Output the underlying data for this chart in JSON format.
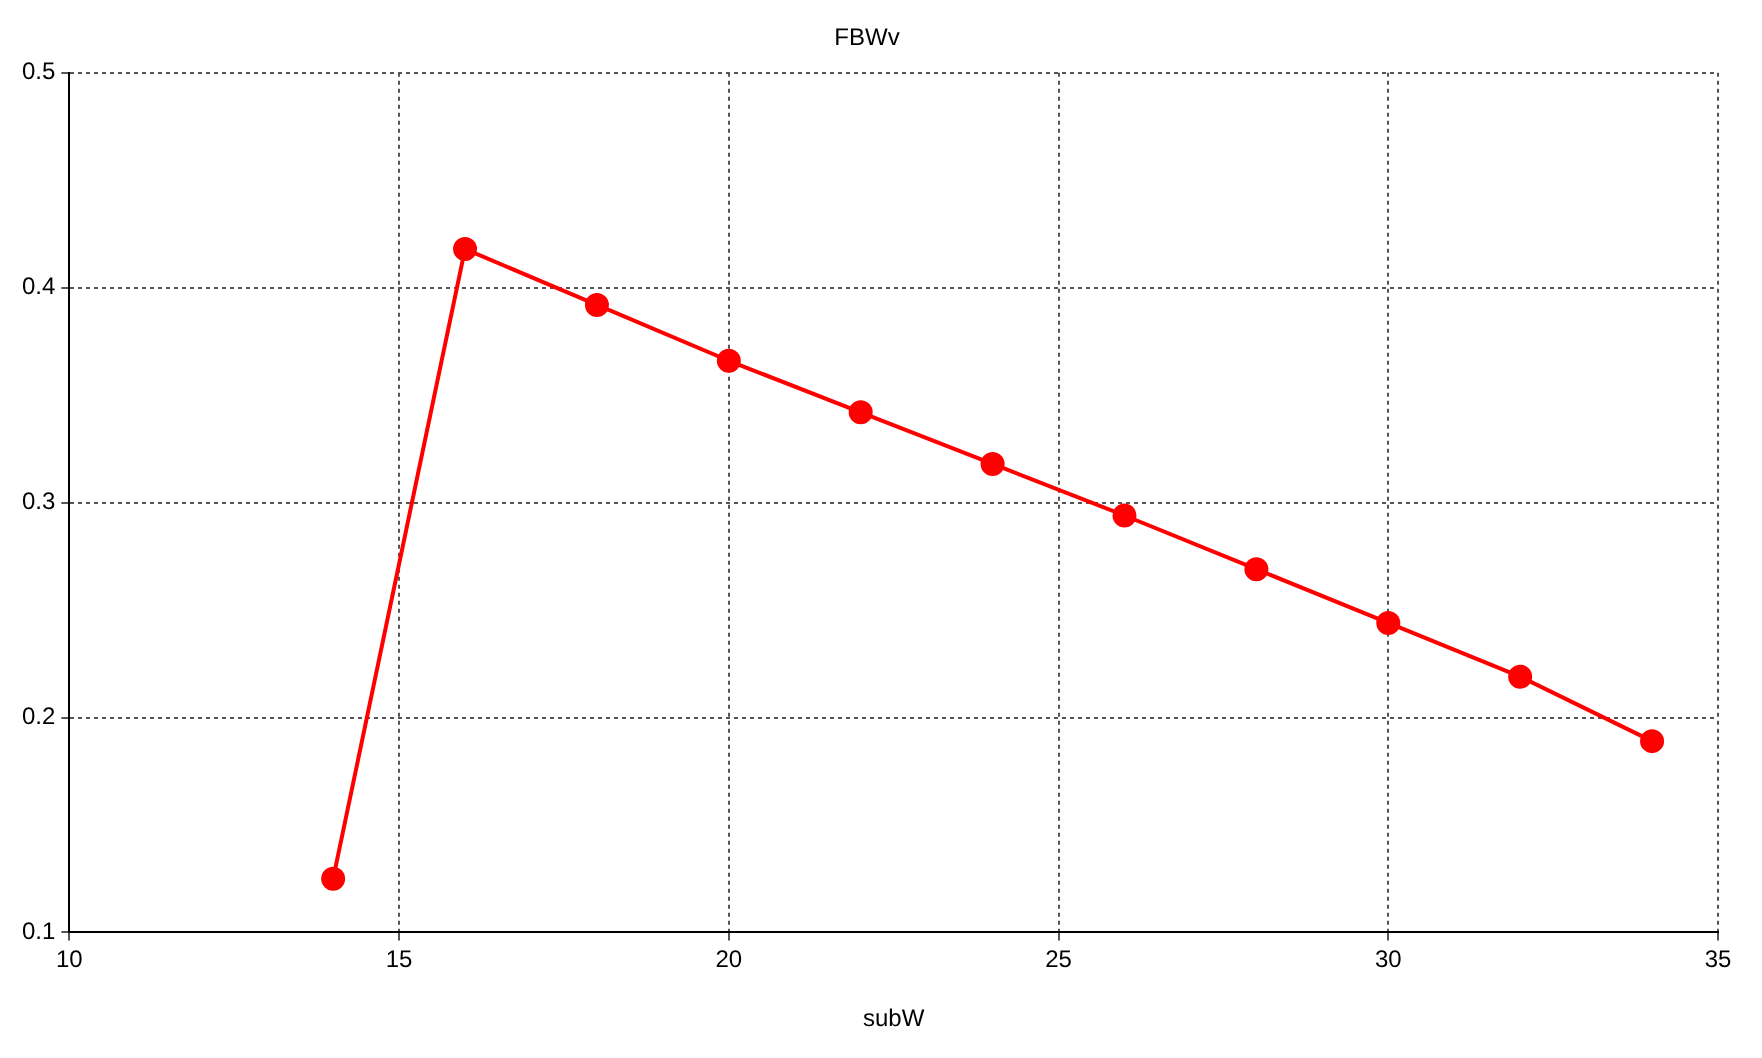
{
  "chart_data": {
    "type": "line",
    "title": "FBWv",
    "xlabel": "subW",
    "x": [
      14,
      16,
      18,
      20,
      22,
      24,
      26,
      28,
      30,
      32,
      34
    ],
    "series": [
      {
        "color": "#ff0000",
        "values": [
          0.125,
          0.418,
          0.392,
          0.366,
          0.342,
          0.318,
          0.294,
          0.269,
          0.244,
          0.219,
          0.189
        ]
      }
    ],
    "xlim": [
      10,
      35
    ],
    "xticks": [
      10,
      15,
      20,
      25,
      30,
      35
    ],
    "ylim": [
      0.1,
      0.5
    ],
    "yticks": [
      0.1,
      0.2,
      0.3,
      0.4,
      0.5
    ],
    "grid": true,
    "legend": false,
    "marker": "circle",
    "line_style": "solid"
  }
}
